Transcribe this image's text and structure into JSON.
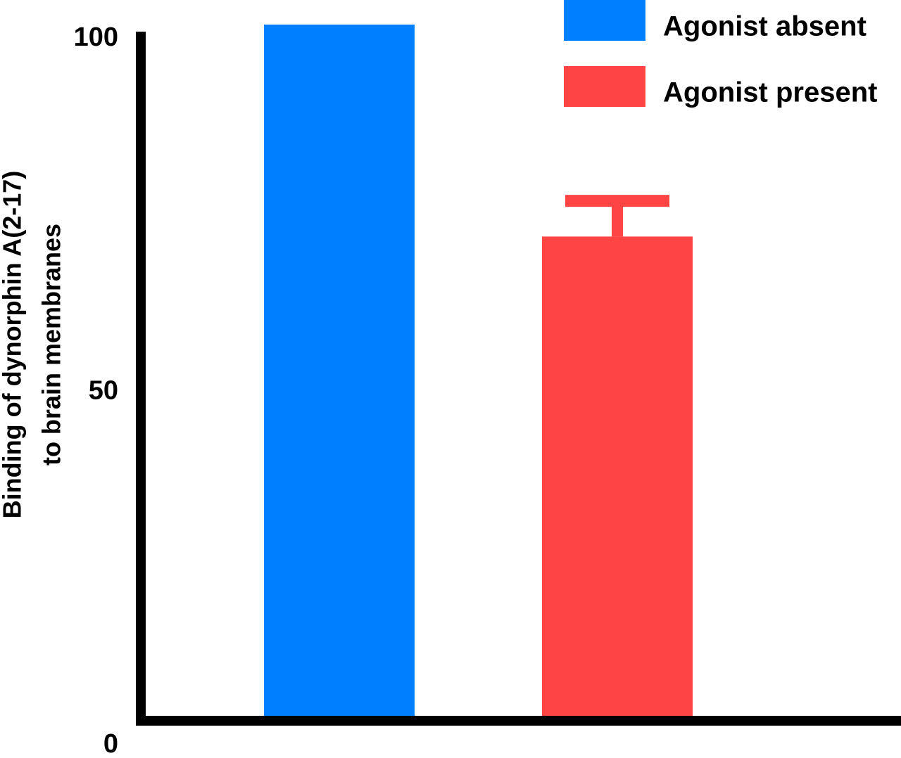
{
  "chart_data": {
    "type": "bar",
    "y_label": [
      "Binding of dynorphin A(2-17)",
      "to brain membranes"
    ],
    "categories": [
      null
    ],
    "series": [
      {
        "name": "Agonist absent",
        "color": "#0080ff",
        "values": [
          102
        ]
      },
      {
        "name": "Agonist present",
        "color": "#ff4444",
        "values": [
          72
        ],
        "errors": [
          5
        ]
      }
    ],
    "ylim": [
      0,
      100
    ],
    "yticks": [
      0,
      50,
      100
    ],
    "grid": false
  }
}
